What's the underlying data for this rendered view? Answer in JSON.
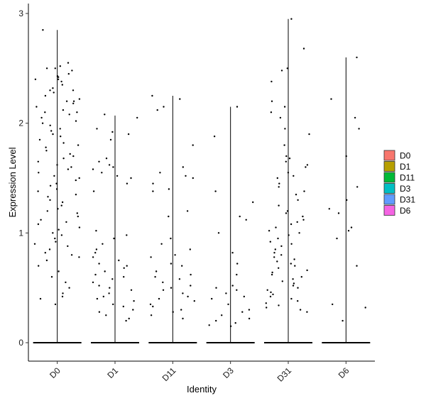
{
  "chart_data": {
    "type": "scatter",
    "subtype": "violin-jitter",
    "title": "",
    "xlabel": "Identity",
    "ylabel": "Expression Level",
    "ylim": [
      -0.15,
      3.1
    ],
    "yticks": [
      0,
      1,
      2,
      3
    ],
    "grid": false,
    "legend_position": "right",
    "categories": [
      "D0",
      "D1",
      "D11",
      "D3",
      "D31",
      "D6"
    ],
    "series": [
      {
        "name": "D0",
        "color": "#F8766D",
        "violin_max": 2.85,
        "points": [
          2.85,
          2.55,
          2.52,
          2.5,
          2.5,
          2.48,
          2.45,
          2.43,
          2.42,
          2.4,
          2.4,
          2.38,
          2.35,
          2.32,
          2.3,
          2.3,
          2.28,
          2.25,
          2.22,
          2.2,
          2.2,
          2.18,
          2.15,
          2.12,
          2.1,
          2.1,
          2.08,
          2.05,
          2.02,
          2.0,
          1.98,
          1.95,
          1.93,
          1.9,
          1.88,
          1.85,
          1.82,
          1.8,
          1.78,
          1.75,
          1.72,
          1.7,
          1.68,
          1.65,
          1.62,
          1.6,
          1.58,
          1.55,
          1.52,
          1.5,
          1.48,
          1.45,
          1.43,
          1.4,
          1.38,
          1.35,
          1.33,
          1.3,
          1.28,
          1.25,
          1.22,
          1.2,
          1.18,
          1.15,
          1.12,
          1.1,
          1.08,
          1.05,
          1.03,
          1.0,
          0.98,
          0.95,
          0.92,
          0.9,
          0.88,
          0.85,
          0.82,
          0.8,
          0.78,
          0.75,
          0.7,
          0.65,
          0.6,
          0.55,
          0.5,
          0.45,
          0.42,
          0.4,
          0.35
        ]
      },
      {
        "name": "D1",
        "color": "#B79F00",
        "violin_max": 2.07,
        "points": [
          2.08,
          2.05,
          1.95,
          1.92,
          1.9,
          1.85,
          1.68,
          1.65,
          1.62,
          1.6,
          1.58,
          1.55,
          1.52,
          1.5,
          1.45,
          1.38,
          1.02,
          0.98,
          0.95,
          0.9,
          0.85,
          0.82,
          0.78,
          0.75,
          0.72,
          0.7,
          0.68,
          0.65,
          0.62,
          0.6,
          0.58,
          0.55,
          0.52,
          0.5,
          0.48,
          0.45,
          0.42,
          0.4,
          0.38,
          0.35,
          0.33,
          0.3,
          0.28,
          0.25,
          0.22,
          0.2
        ]
      },
      {
        "name": "D11",
        "color": "#00BA38",
        "violin_max": 2.25,
        "points": [
          2.25,
          2.22,
          2.15,
          2.12,
          1.8,
          1.6,
          1.55,
          1.52,
          1.5,
          1.45,
          1.4,
          1.38,
          1.2,
          1.15,
          0.95,
          0.9,
          0.85,
          0.8,
          0.78,
          0.72,
          0.7,
          0.65,
          0.62,
          0.6,
          0.58,
          0.55,
          0.52,
          0.5,
          0.48,
          0.45,
          0.42,
          0.4,
          0.38,
          0.35,
          0.33,
          0.3,
          0.28,
          0.25,
          0.22
        ]
      },
      {
        "name": "D3",
        "color": "#00BFC4",
        "violin_max": 2.15,
        "points": [
          2.15,
          1.88,
          1.38,
          1.28,
          1.15,
          1.12,
          1.0,
          0.82,
          0.72,
          0.62,
          0.52,
          0.5,
          0.48,
          0.45,
          0.42,
          0.4,
          0.35,
          0.3,
          0.28,
          0.25,
          0.22,
          0.2,
          0.18,
          0.16,
          0.15
        ]
      },
      {
        "name": "D31",
        "color": "#619CFF",
        "violin_max": 2.95,
        "points": [
          2.95,
          2.68,
          2.5,
          2.48,
          2.38,
          2.2,
          2.15,
          2.1,
          2.05,
          1.95,
          1.9,
          1.8,
          1.7,
          1.68,
          1.65,
          1.62,
          1.6,
          1.55,
          1.52,
          1.5,
          1.45,
          1.42,
          1.38,
          1.35,
          1.3,
          1.25,
          1.2,
          1.18,
          1.15,
          1.12,
          1.1,
          1.08,
          1.05,
          1.02,
          1.0,
          0.98,
          0.95,
          0.92,
          0.9,
          0.88,
          0.85,
          0.82,
          0.8,
          0.78,
          0.76,
          0.74,
          0.72,
          0.7,
          0.68,
          0.66,
          0.64,
          0.62,
          0.6,
          0.58,
          0.56,
          0.54,
          0.52,
          0.5,
          0.48,
          0.46,
          0.44,
          0.42,
          0.4,
          0.38,
          0.36,
          0.34,
          0.32,
          0.3,
          0.28
        ]
      },
      {
        "name": "D6",
        "color": "#F564E3",
        "violin_max": 2.6,
        "points": [
          2.6,
          2.22,
          2.05,
          1.95,
          1.7,
          1.42,
          1.3,
          1.22,
          1.18,
          1.05,
          1.02,
          0.95,
          0.7,
          0.35,
          0.32,
          0.2
        ]
      }
    ]
  }
}
